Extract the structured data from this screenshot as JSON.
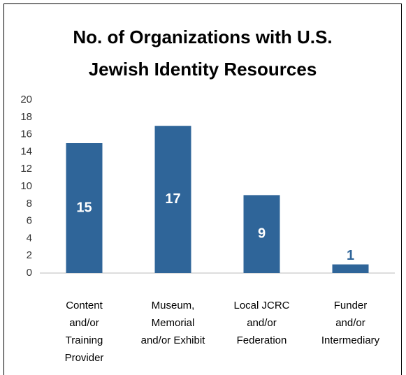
{
  "chart_data": {
    "type": "bar",
    "title": "No. of Organizations with U.S. Jewish Identity Resources",
    "categories": [
      "Content and/or Training Provider",
      "Museum, Memorial and/or Exhibit",
      "Local JCRC and/or Federation",
      "Funder and/or Intermediary"
    ],
    "values": [
      15,
      17,
      9,
      1
    ],
    "color": "#2f6599",
    "ylim": [
      0,
      20
    ],
    "yticks": [
      0,
      2,
      4,
      6,
      8,
      10,
      12,
      14,
      16,
      18,
      20
    ],
    "grid": false
  }
}
